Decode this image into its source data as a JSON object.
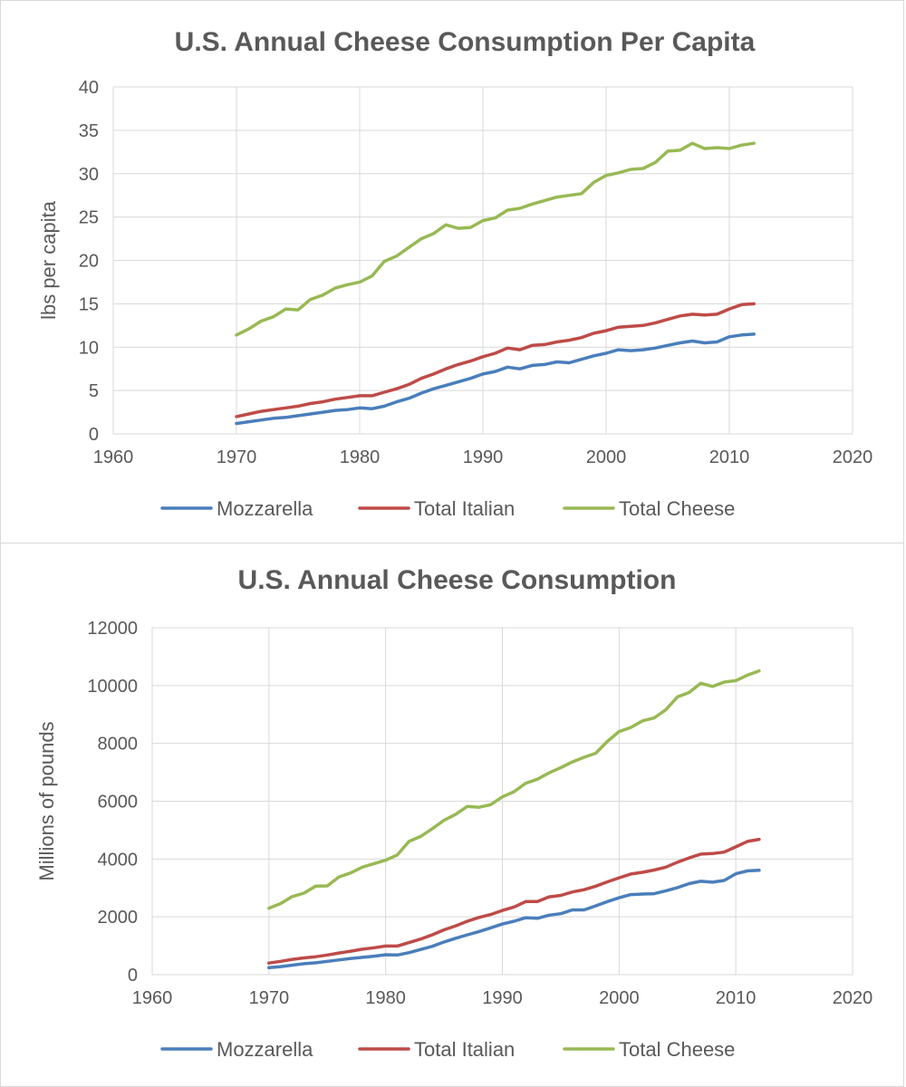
{
  "chart_data": [
    {
      "type": "line",
      "title": "U.S. Annual Cheese Consumption Per Capita",
      "xlabel": "",
      "ylabel": "lbs per capita",
      "xlim": [
        1960,
        2020
      ],
      "ylim": [
        0,
        40
      ],
      "x_ticks": [
        1960,
        1970,
        1980,
        1990,
        2000,
        2010,
        2020
      ],
      "y_ticks": [
        0,
        5,
        10,
        15,
        20,
        25,
        30,
        35,
        40
      ],
      "grid": true,
      "legend": "bottom",
      "x": [
        1970,
        1971,
        1972,
        1973,
        1974,
        1975,
        1976,
        1977,
        1978,
        1979,
        1980,
        1981,
        1982,
        1983,
        1984,
        1985,
        1986,
        1987,
        1988,
        1989,
        1990,
        1991,
        1992,
        1993,
        1994,
        1995,
        1996,
        1997,
        1998,
        1999,
        2000,
        2001,
        2002,
        2003,
        2004,
        2005,
        2006,
        2007,
        2008,
        2009,
        2010,
        2011,
        2012
      ],
      "series": [
        {
          "name": "Mozzarella",
          "color": "#4a7ebb",
          "values": [
            1.2,
            1.4,
            1.6,
            1.8,
            1.9,
            2.1,
            2.3,
            2.5,
            2.7,
            2.8,
            3.0,
            2.9,
            3.2,
            3.7,
            4.1,
            4.7,
            5.2,
            5.6,
            6.0,
            6.4,
            6.9,
            7.2,
            7.7,
            7.5,
            7.9,
            8.0,
            8.3,
            8.2,
            8.6,
            9.0,
            9.3,
            9.7,
            9.6,
            9.7,
            9.9,
            10.2,
            10.5,
            10.7,
            10.5,
            10.6,
            11.2,
            11.4,
            11.5
          ]
        },
        {
          "name": "Total Italian",
          "color": "#be4b48",
          "values": [
            2.0,
            2.3,
            2.6,
            2.8,
            3.0,
            3.2,
            3.5,
            3.7,
            4.0,
            4.2,
            4.4,
            4.4,
            4.8,
            5.2,
            5.7,
            6.4,
            6.9,
            7.5,
            8.0,
            8.4,
            8.9,
            9.3,
            9.9,
            9.7,
            10.2,
            10.3,
            10.6,
            10.8,
            11.1,
            11.6,
            11.9,
            12.3,
            12.4,
            12.5,
            12.8,
            13.2,
            13.6,
            13.8,
            13.7,
            13.8,
            14.4,
            14.9,
            15.0
          ]
        },
        {
          "name": "Total Cheese",
          "color": "#98b954",
          "values": [
            11.4,
            12.1,
            13.0,
            13.5,
            14.4,
            14.3,
            15.5,
            16.0,
            16.8,
            17.2,
            17.5,
            18.2,
            19.9,
            20.5,
            21.5,
            22.5,
            23.1,
            24.1,
            23.7,
            23.8,
            24.6,
            24.9,
            25.8,
            26.0,
            26.5,
            26.9,
            27.3,
            27.5,
            27.7,
            29.0,
            29.8,
            30.1,
            30.5,
            30.6,
            31.3,
            32.6,
            32.7,
            33.5,
            32.9,
            33.0,
            32.9,
            33.3,
            33.5
          ]
        }
      ]
    },
    {
      "type": "line",
      "title": "U.S. Annual Cheese Consumption",
      "xlabel": "",
      "ylabel": "Millions of pounds",
      "xlim": [
        1960,
        2020
      ],
      "ylim": [
        0,
        12000
      ],
      "x_ticks": [
        1960,
        1970,
        1980,
        1990,
        2000,
        2010,
        2020
      ],
      "y_ticks": [
        0,
        2000,
        4000,
        6000,
        8000,
        10000,
        12000
      ],
      "grid": true,
      "legend": "bottom",
      "x": [
        1970,
        1971,
        1972,
        1973,
        1974,
        1975,
        1976,
        1977,
        1978,
        1979,
        1980,
        1981,
        1982,
        1983,
        1984,
        1985,
        1986,
        1987,
        1988,
        1989,
        1990,
        1991,
        1992,
        1993,
        1994,
        1995,
        1996,
        1997,
        1998,
        1999,
        2000,
        2001,
        2002,
        2003,
        2004,
        2005,
        2006,
        2007,
        2008,
        2009,
        2010,
        2011,
        2012
      ],
      "series": [
        {
          "name": "Mozzarella",
          "color": "#4a7ebb",
          "values": [
            240,
            280,
            330,
            380,
            410,
            460,
            510,
            560,
            600,
            640,
            690,
            680,
            760,
            870,
            980,
            1130,
            1260,
            1380,
            1490,
            1620,
            1750,
            1850,
            1970,
            1950,
            2060,
            2110,
            2240,
            2240,
            2380,
            2530,
            2660,
            2770,
            2790,
            2800,
            2900,
            3010,
            3150,
            3230,
            3200,
            3260,
            3490,
            3590,
            3610
          ]
        },
        {
          "name": "Total Italian",
          "color": "#be4b48",
          "values": [
            400,
            460,
            530,
            580,
            620,
            680,
            750,
            810,
            880,
            930,
            990,
            990,
            1110,
            1230,
            1380,
            1550,
            1690,
            1850,
            1980,
            2080,
            2220,
            2340,
            2530,
            2530,
            2690,
            2740,
            2860,
            2940,
            3060,
            3210,
            3350,
            3480,
            3540,
            3620,
            3720,
            3890,
            4040,
            4170,
            4190,
            4240,
            4420,
            4610,
            4680
          ]
        },
        {
          "name": "Total Cheese",
          "color": "#98b954",
          "values": [
            2300,
            2460,
            2700,
            2820,
            3060,
            3070,
            3380,
            3520,
            3720,
            3840,
            3960,
            4140,
            4610,
            4780,
            5050,
            5340,
            5550,
            5820,
            5790,
            5880,
            6150,
            6330,
            6620,
            6760,
            6980,
            7160,
            7360,
            7520,
            7660,
            8070,
            8410,
            8550,
            8780,
            8880,
            9160,
            9610,
            9760,
            10080,
            9970,
            10120,
            10170,
            10360,
            10510
          ]
        }
      ]
    }
  ]
}
